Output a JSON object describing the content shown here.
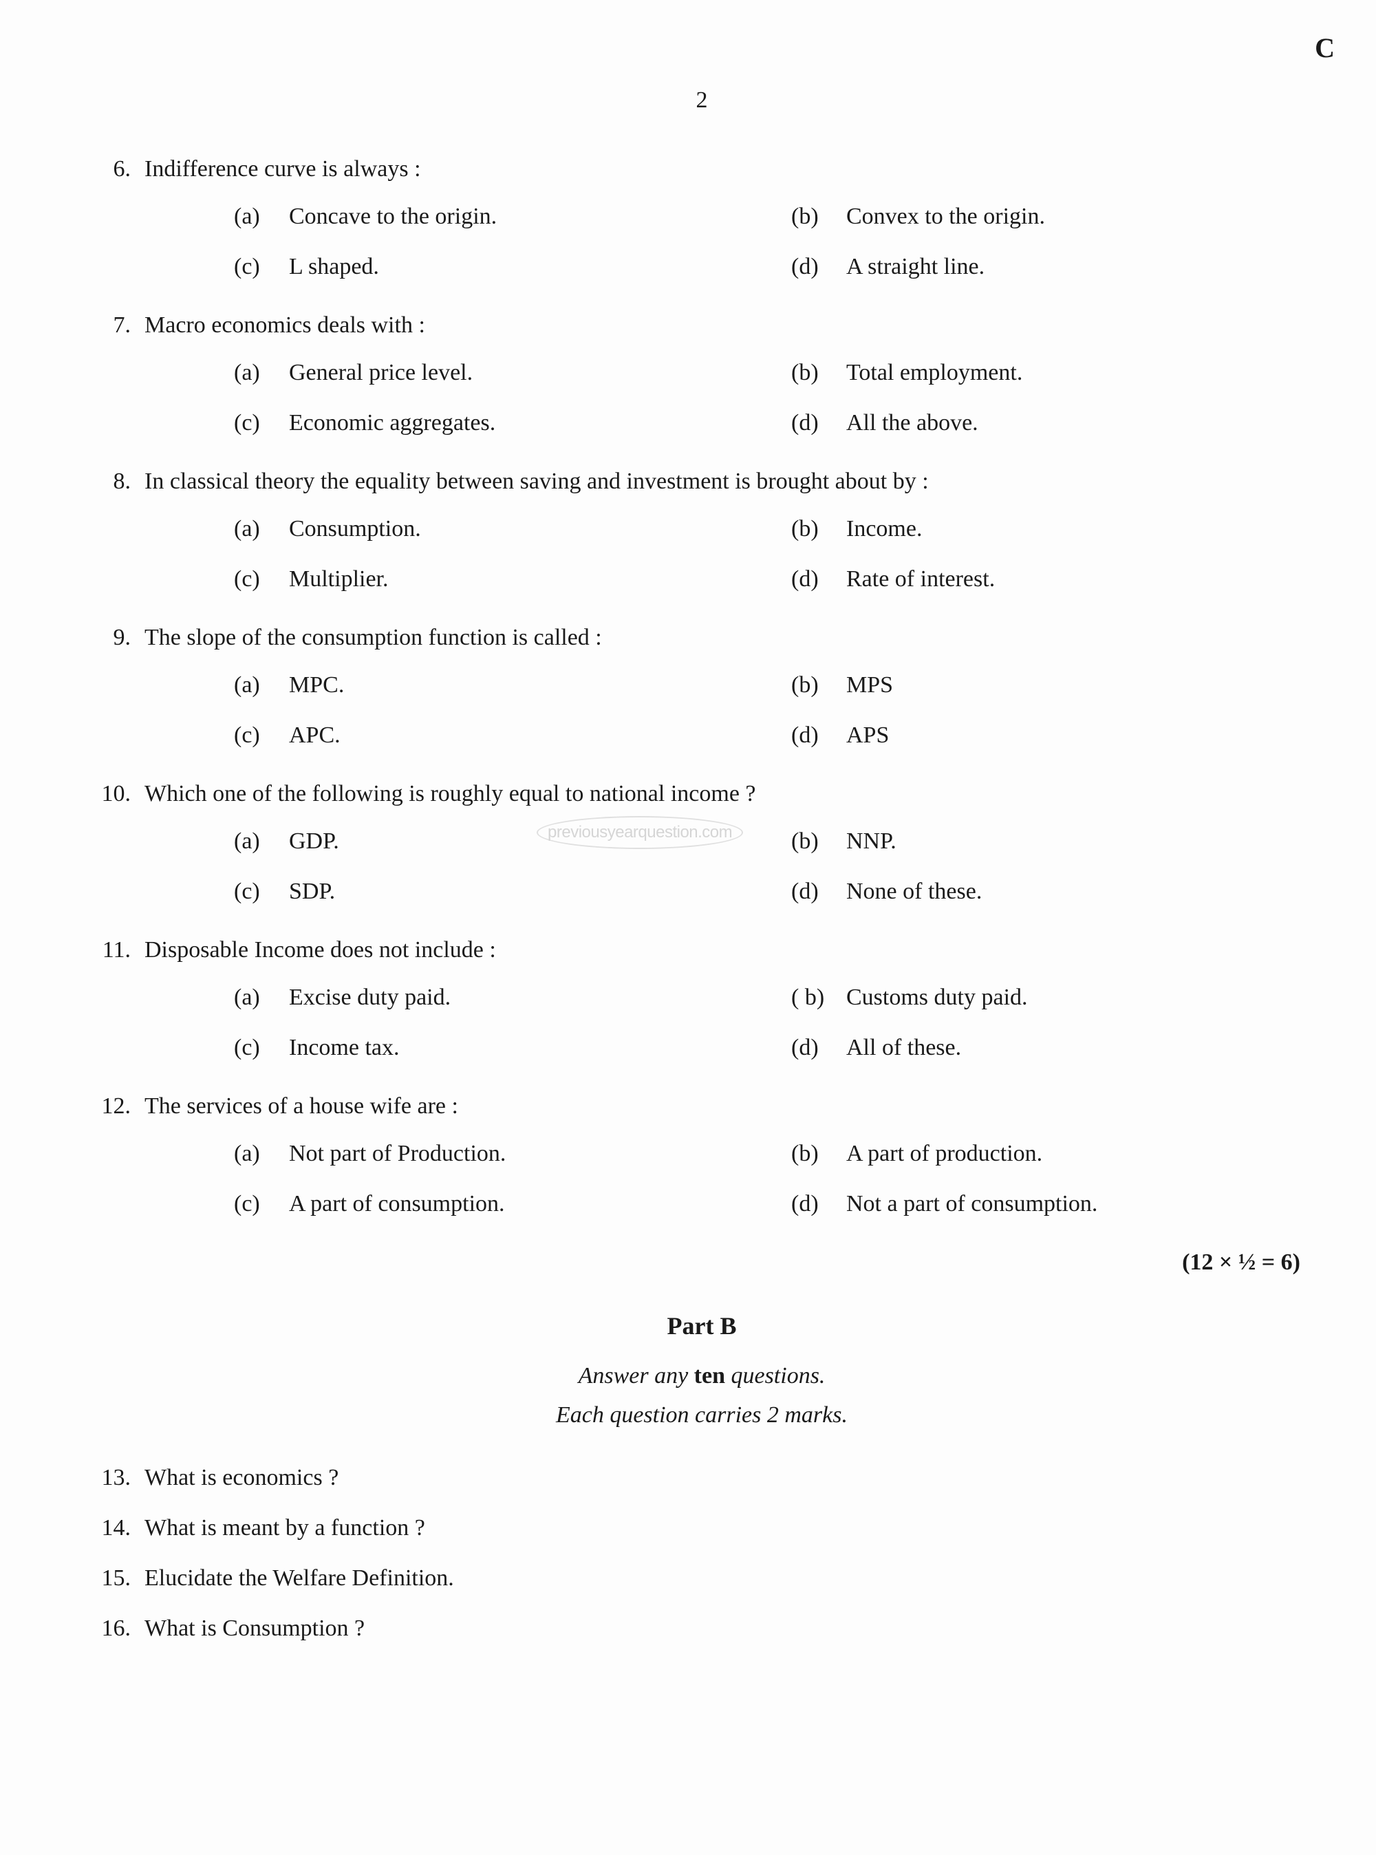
{
  "page_number": "2",
  "corner_letter": "C",
  "watermark": "previousyearquestion.com",
  "mcq": [
    {
      "num": "6.",
      "text": "Indifference curve is always :",
      "options": {
        "a": "Concave to the origin.",
        "b": "Convex to the origin.",
        "c": "L shaped.",
        "d": "A straight line."
      }
    },
    {
      "num": "7.",
      "text": "Macro economics deals with :",
      "options": {
        "a": "General price level.",
        "b": "Total employment.",
        "c": "Economic aggregates.",
        "d": "All the above."
      }
    },
    {
      "num": "8.",
      "text": "In classical theory the equality between saving and investment is brought about by :",
      "options": {
        "a": "Consumption.",
        "b": "Income.",
        "c": "Multiplier.",
        "d": "Rate of interest."
      }
    },
    {
      "num": "9.",
      "text": "The slope of the consumption function is called :",
      "options": {
        "a": "MPC.",
        "b": "MPS",
        "c": "APC.",
        "d": "APS"
      }
    },
    {
      "num": "10.",
      "text": "Which one of the following is roughly equal to national income ?",
      "options": {
        "a": "GDP.",
        "b": "NNP.",
        "c": "SDP.",
        "d": "None of these."
      }
    },
    {
      "num": "11.",
      "text": "Disposable Income does not include :",
      "options": {
        "a": "Excise duty paid.",
        "b": "Customs duty paid.",
        "c": "Income tax.",
        "d": "All of these."
      }
    },
    {
      "num": "12.",
      "text": "The services of a house wife are :",
      "options": {
        "a": "Not part of Production.",
        "b": "A part of production.",
        "c": "A part of consumption.",
        "d": "Not a part of consumption."
      }
    }
  ],
  "marks_line": "(12 × ½ = 6)",
  "part_b": {
    "title": "Part B",
    "instr_prefix": "Answer any ",
    "instr_bold": "ten",
    "instr_suffix": " questions.",
    "instr2": "Each question carries 2 marks."
  },
  "short_questions": [
    {
      "num": "13.",
      "text": "What is economics ?"
    },
    {
      "num": "14.",
      "text": "What is meant by a function ?"
    },
    {
      "num": "15.",
      "text": "Elucidate the Welfare Definition."
    },
    {
      "num": "16.",
      "text": "What is Consumption ?"
    }
  ],
  "labels": {
    "a": "(a)",
    "b": "(b)",
    "b_spaced": "( b)",
    "c": "(c)",
    "d": "(d)"
  }
}
